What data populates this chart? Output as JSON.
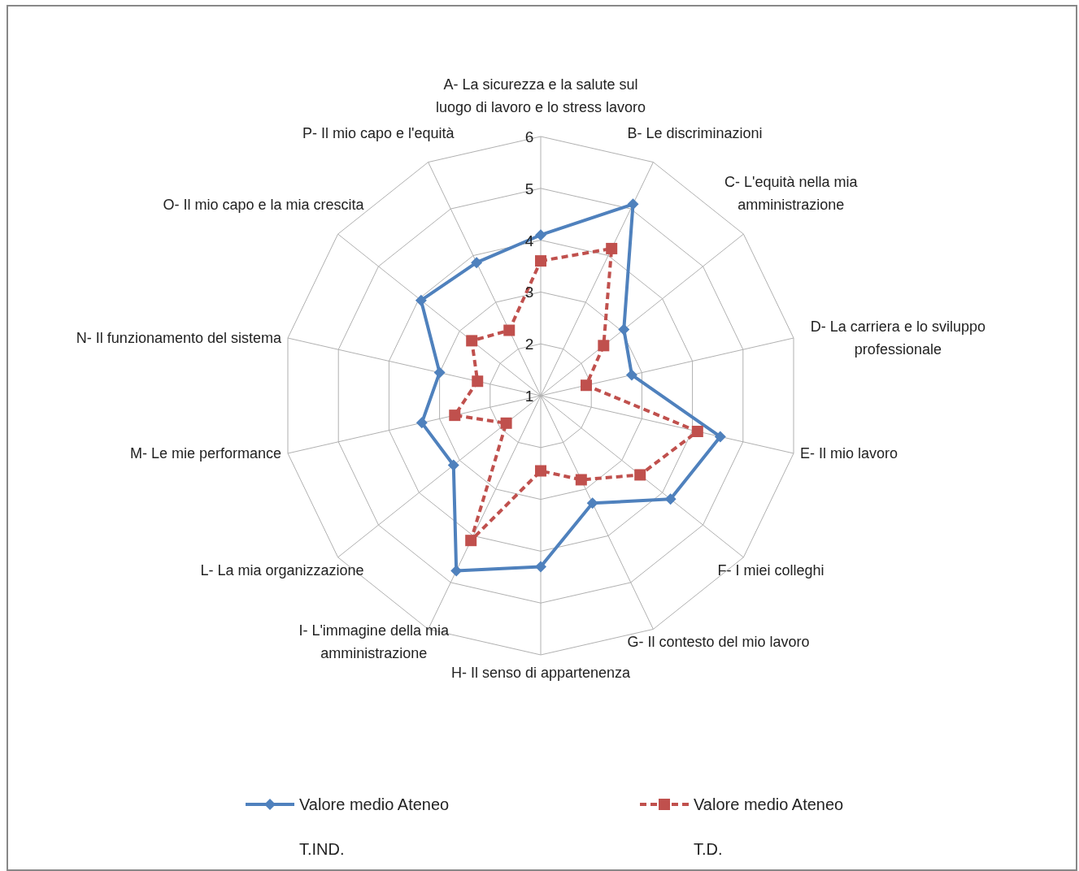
{
  "chart_data": {
    "type": "radar",
    "categories": [
      "A- La sicurezza e la salute sul luogo di lavoro e lo stress lavoro",
      "B- Le discriminazioni",
      "C- L'equità nella mia amministrazione",
      "D- La carriera e lo sviluppo professionale",
      "E- Il mio lavoro",
      "F- I miei colleghi",
      "G- Il contesto del mio lavoro",
      "H- Il senso di appartenenza",
      "I- L'immagine della mia amministrazione",
      "L- La mia organizzazione",
      "M- Le mie performance",
      "N- Il funzionamento del sistema",
      "O- Il mio capo e la mia crescita",
      "P- Il mio capo e l'equità"
    ],
    "series": [
      {
        "name": "Valore medio Ateneo",
        "color": "#4f81bd",
        "marker": "diamond",
        "line_style": "solid",
        "values": [
          4.1,
          5.1,
          3.05,
          2.8,
          4.55,
          4.2,
          3.3,
          4.3,
          4.75,
          3.15,
          3.35,
          3.0,
          3.95,
          3.85
        ]
      },
      {
        "name": "Valore medio Ateneo",
        "color": "#c0504d",
        "marker": "square",
        "line_style": "dashed",
        "values": [
          3.6,
          4.15,
          2.55,
          1.9,
          4.1,
          3.45,
          2.8,
          2.45,
          4.1,
          1.85,
          2.7,
          2.25,
          2.7,
          2.4
        ]
      }
    ],
    "ylim": [
      1,
      6
    ],
    "yticks": [
      1,
      2,
      3,
      4,
      5,
      6
    ],
    "grid": true,
    "legend": "bottom",
    "annotations": [
      "T.IND.",
      "T.D."
    ]
  }
}
